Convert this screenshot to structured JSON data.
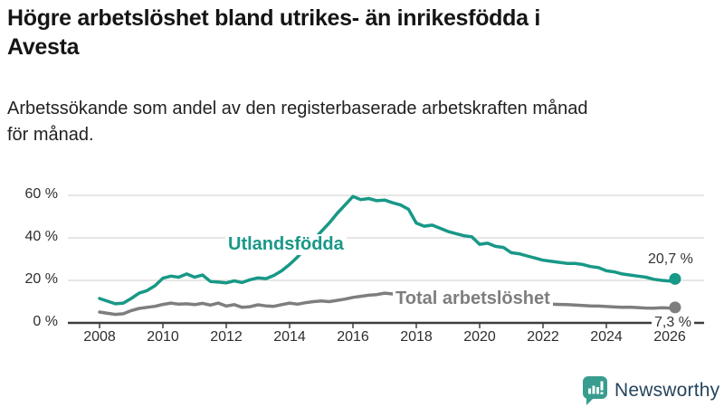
{
  "title": {
    "full": "Högre arbetslöshet bland utrikes- än inrikesfödda i Avesta",
    "line1": "Högre arbetslöshet bland utrikes- än inrikesfödda i",
    "line2": "Avesta"
  },
  "subtitle": {
    "full": "Arbetssökande som andel av den registerbaserade arbetskraften månad för månad.",
    "line1": "Arbetssökande som andel av den registerbaserade arbetskraften månad",
    "line2": "för månad."
  },
  "footer": {
    "brand": "Newsworthy",
    "logo_icon": "bar-chart-speech-bubble-icon"
  },
  "colors": {
    "accent_teal": "#189887",
    "line_gray": "#7e7e7e",
    "grid": "#d8d8d8",
    "axis": "#3d3d3d",
    "text_dark": "#2e2e2e",
    "brand_navy": "#25455f",
    "badge_teal": "#389c8f"
  },
  "chart_data": {
    "type": "line",
    "title": "Högre arbetslöshet bland utrikes- än inrikesfödda i Avesta",
    "subtitle": "Arbetssökande som andel av den registerbaserade arbetskraften månad för månad.",
    "xlabel": "",
    "ylabel": "",
    "xlim": [
      2008,
      2026.4
    ],
    "ylim": [
      0,
      62
    ],
    "grid": "horizontal",
    "legend": "inline-labels",
    "x_ticks": [
      {
        "value": 2008,
        "label": "2008"
      },
      {
        "value": 2010,
        "label": "2010"
      },
      {
        "value": 2012,
        "label": "2012"
      },
      {
        "value": 2014,
        "label": "2014"
      },
      {
        "value": 2016,
        "label": "2016"
      },
      {
        "value": 2018,
        "label": "2018"
      },
      {
        "value": 2020,
        "label": "2020"
      },
      {
        "value": 2022,
        "label": "2022"
      },
      {
        "value": 2024,
        "label": "2024"
      },
      {
        "value": 2026,
        "label": "2026"
      }
    ],
    "y_ticks": [
      {
        "value": 0,
        "label": "0 %"
      },
      {
        "value": 20,
        "label": "20 %"
      },
      {
        "value": 40,
        "label": "40 %"
      },
      {
        "value": 60,
        "label": "60 %"
      }
    ],
    "series": [
      {
        "name": "Utlandsfödda",
        "color": "#189887",
        "end_label": "20,7 %",
        "end_value": 20.7,
        "points": [
          [
            2008.0,
            11.5
          ],
          [
            2008.25,
            10.2
          ],
          [
            2008.5,
            9.0
          ],
          [
            2008.75,
            9.3
          ],
          [
            2009.0,
            11.5
          ],
          [
            2009.25,
            14.0
          ],
          [
            2009.5,
            15.2
          ],
          [
            2009.75,
            17.5
          ],
          [
            2010.0,
            21.0
          ],
          [
            2010.25,
            22.0
          ],
          [
            2010.5,
            21.5
          ],
          [
            2010.75,
            23.0
          ],
          [
            2011.0,
            21.5
          ],
          [
            2011.25,
            22.5
          ],
          [
            2011.5,
            19.5
          ],
          [
            2011.75,
            19.2
          ],
          [
            2012.0,
            18.8
          ],
          [
            2012.25,
            19.8
          ],
          [
            2012.5,
            19.0
          ],
          [
            2012.75,
            20.3
          ],
          [
            2013.0,
            21.2
          ],
          [
            2013.25,
            20.8
          ],
          [
            2013.5,
            22.3
          ],
          [
            2013.75,
            24.5
          ],
          [
            2014.0,
            27.5
          ],
          [
            2014.25,
            31.0
          ],
          [
            2014.5,
            35.0
          ],
          [
            2014.75,
            39.0
          ],
          [
            2015.0,
            43.0
          ],
          [
            2015.25,
            47.0
          ],
          [
            2015.5,
            51.5
          ],
          [
            2015.75,
            55.5
          ],
          [
            2016.0,
            59.5
          ],
          [
            2016.25,
            58.0
          ],
          [
            2016.5,
            58.5
          ],
          [
            2016.75,
            57.5
          ],
          [
            2017.0,
            57.8
          ],
          [
            2017.25,
            56.5
          ],
          [
            2017.5,
            55.5
          ],
          [
            2017.75,
            53.5
          ],
          [
            2018.0,
            47.0
          ],
          [
            2018.25,
            45.5
          ],
          [
            2018.5,
            46.0
          ],
          [
            2018.75,
            44.5
          ],
          [
            2019.0,
            43.0
          ],
          [
            2019.25,
            42.0
          ],
          [
            2019.5,
            41.0
          ],
          [
            2019.75,
            40.5
          ],
          [
            2020.0,
            37.0
          ],
          [
            2020.25,
            37.5
          ],
          [
            2020.5,
            36.0
          ],
          [
            2020.75,
            35.5
          ],
          [
            2021.0,
            33.0
          ],
          [
            2021.25,
            32.5
          ],
          [
            2021.5,
            31.5
          ],
          [
            2021.75,
            30.5
          ],
          [
            2022.0,
            29.5
          ],
          [
            2022.25,
            29.0
          ],
          [
            2022.5,
            28.5
          ],
          [
            2022.75,
            28.0
          ],
          [
            2023.0,
            28.0
          ],
          [
            2023.25,
            27.5
          ],
          [
            2023.5,
            26.5
          ],
          [
            2023.75,
            26.0
          ],
          [
            2024.0,
            24.5
          ],
          [
            2024.25,
            24.0
          ],
          [
            2024.5,
            23.0
          ],
          [
            2024.75,
            22.5
          ],
          [
            2025.0,
            22.0
          ],
          [
            2025.25,
            21.5
          ],
          [
            2025.5,
            20.5
          ],
          [
            2025.75,
            20.0
          ],
          [
            2026.0,
            19.7
          ],
          [
            2026.17,
            20.7
          ]
        ]
      },
      {
        "name": "Total arbetslöshet",
        "color": "#7e7e7e",
        "end_label": "7,3 %",
        "end_value": 7.3,
        "points": [
          [
            2008.0,
            5.1
          ],
          [
            2008.25,
            4.5
          ],
          [
            2008.5,
            4.0
          ],
          [
            2008.75,
            4.3
          ],
          [
            2009.0,
            5.8
          ],
          [
            2009.25,
            6.8
          ],
          [
            2009.5,
            7.3
          ],
          [
            2009.75,
            7.8
          ],
          [
            2010.0,
            8.7
          ],
          [
            2010.25,
            9.3
          ],
          [
            2010.5,
            8.8
          ],
          [
            2010.75,
            9.0
          ],
          [
            2011.0,
            8.6
          ],
          [
            2011.25,
            9.2
          ],
          [
            2011.5,
            8.4
          ],
          [
            2011.75,
            9.3
          ],
          [
            2012.0,
            7.9
          ],
          [
            2012.25,
            8.6
          ],
          [
            2012.5,
            7.3
          ],
          [
            2012.75,
            7.6
          ],
          [
            2013.0,
            8.5
          ],
          [
            2013.25,
            8.0
          ],
          [
            2013.5,
            7.8
          ],
          [
            2013.75,
            8.6
          ],
          [
            2014.0,
            9.3
          ],
          [
            2014.25,
            8.8
          ],
          [
            2014.5,
            9.5
          ],
          [
            2014.75,
            10.0
          ],
          [
            2015.0,
            10.3
          ],
          [
            2015.25,
            10.0
          ],
          [
            2015.5,
            10.6
          ],
          [
            2015.75,
            11.2
          ],
          [
            2016.0,
            12.0
          ],
          [
            2016.25,
            12.5
          ],
          [
            2016.5,
            13.0
          ],
          [
            2016.75,
            13.3
          ],
          [
            2017.0,
            14.0
          ],
          [
            2017.25,
            13.6
          ],
          [
            2017.5,
            13.4
          ],
          [
            2017.75,
            13.2
          ],
          [
            2018.0,
            13.0
          ],
          [
            2018.25,
            12.6
          ],
          [
            2018.5,
            12.3
          ],
          [
            2018.75,
            12.0
          ],
          [
            2019.0,
            11.6
          ],
          [
            2019.25,
            11.3
          ],
          [
            2019.5,
            11.0
          ],
          [
            2019.75,
            10.8
          ],
          [
            2020.0,
            10.5
          ],
          [
            2020.25,
            11.0
          ],
          [
            2020.5,
            10.8
          ],
          [
            2020.75,
            10.4
          ],
          [
            2021.0,
            10.0
          ],
          [
            2021.25,
            9.7
          ],
          [
            2021.5,
            9.4
          ],
          [
            2021.75,
            9.2
          ],
          [
            2022.0,
            9.0
          ],
          [
            2022.25,
            8.8
          ],
          [
            2022.5,
            8.7
          ],
          [
            2022.75,
            8.6
          ],
          [
            2023.0,
            8.4
          ],
          [
            2023.25,
            8.2
          ],
          [
            2023.5,
            8.0
          ],
          [
            2023.75,
            7.9
          ],
          [
            2024.0,
            7.7
          ],
          [
            2024.25,
            7.5
          ],
          [
            2024.5,
            7.3
          ],
          [
            2024.75,
            7.4
          ],
          [
            2025.0,
            7.2
          ],
          [
            2025.25,
            7.0
          ],
          [
            2025.5,
            6.9
          ],
          [
            2025.75,
            7.1
          ],
          [
            2026.0,
            7.0
          ],
          [
            2026.17,
            7.3
          ]
        ]
      }
    ]
  }
}
